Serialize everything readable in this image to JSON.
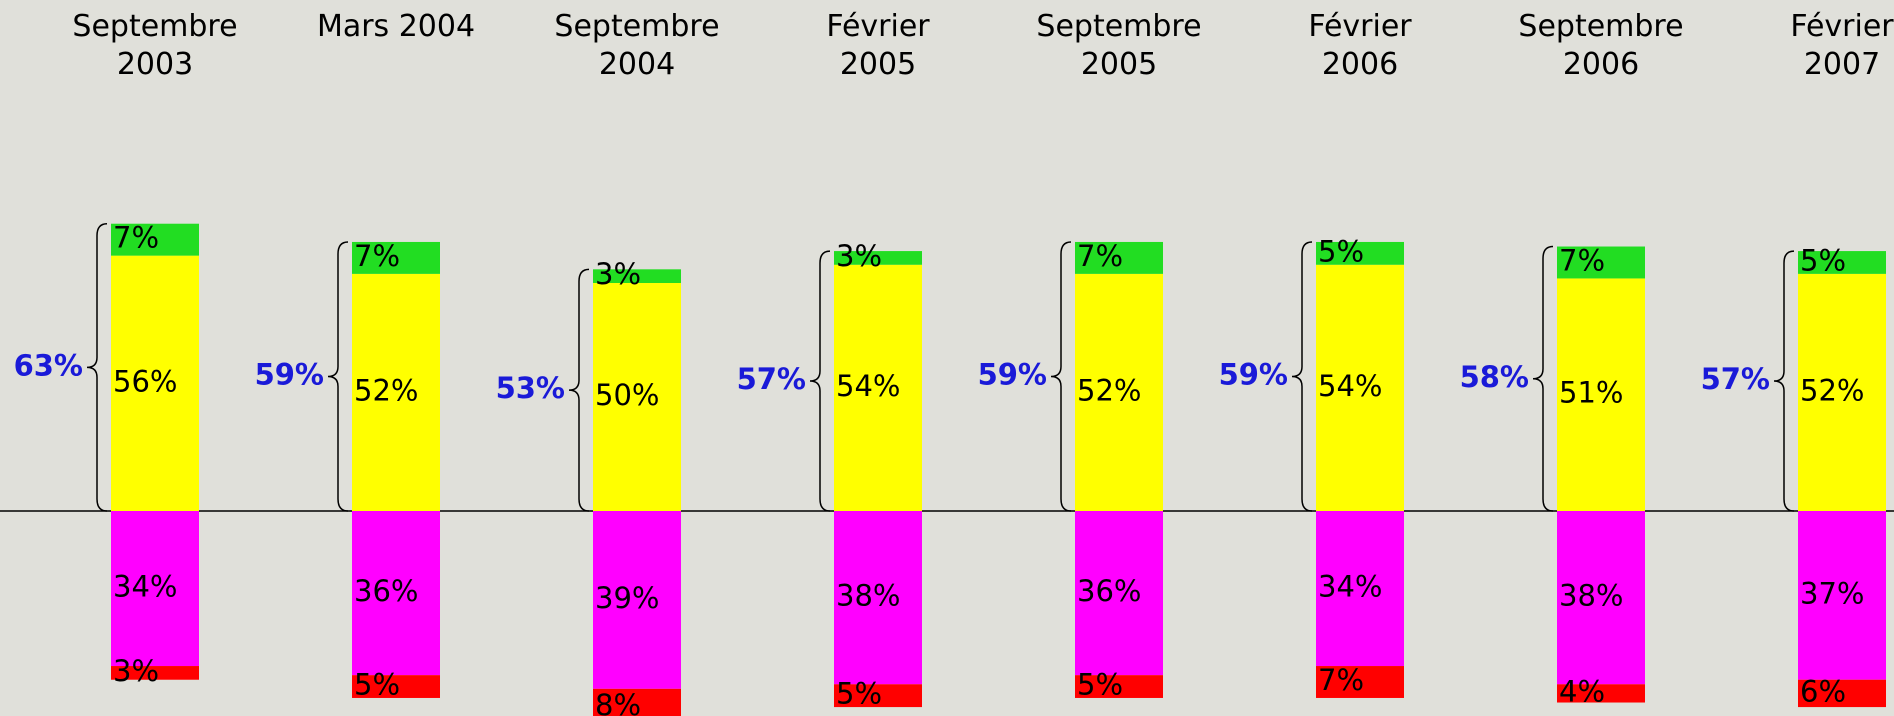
{
  "chart_data": {
    "type": "diverging-stacked-bar",
    "categories": [
      "Septembre 2003",
      "Mars 2004",
      "Septembre 2004",
      "Février 2005",
      "Septembre 2005",
      "Février 2006",
      "Septembre 2006",
      "Février 2007"
    ],
    "series_above": [
      {
        "color": "#ffff00",
        "values": [
          56,
          52,
          50,
          54,
          52,
          54,
          51,
          52
        ],
        "value_labels": [
          "56%",
          "52%",
          "50%",
          "54%",
          "52%",
          "54%",
          "51%",
          "52%"
        ]
      },
      {
        "color": "#22dd22",
        "values": [
          7,
          7,
          3,
          3,
          7,
          5,
          7,
          5
        ],
        "value_labels": [
          "7%",
          "7%",
          "3%",
          "3%",
          "7%",
          "5%",
          "7%",
          "5%"
        ]
      }
    ],
    "series_below": [
      {
        "color": "#ff00ff",
        "values": [
          34,
          36,
          39,
          38,
          36,
          34,
          38,
          37
        ],
        "value_labels": [
          "34%",
          "36%",
          "39%",
          "38%",
          "36%",
          "34%",
          "38%",
          "37%"
        ]
      },
      {
        "color": "#ff0000",
        "values": [
          3,
          5,
          8,
          5,
          5,
          7,
          4,
          6
        ],
        "value_labels": [
          "3%",
          "5%",
          "8%",
          "5%",
          "5%",
          "7%",
          "4%",
          "6%"
        ]
      }
    ],
    "totals": {
      "color": "#1a1ad8",
      "values": [
        63,
        59,
        53,
        57,
        59,
        59,
        58,
        57
      ],
      "value_labels": [
        "63%",
        "59%",
        "53%",
        "57%",
        "59%",
        "59%",
        "58%",
        "57%"
      ]
    }
  }
}
